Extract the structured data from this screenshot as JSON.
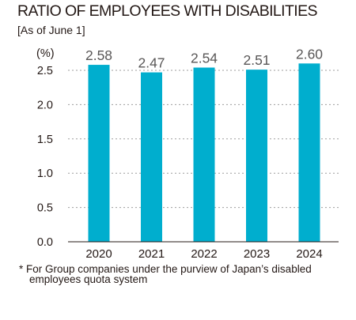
{
  "header": {
    "title": "RATIO OF EMPLOYEES WITH DISABILITIES",
    "subtitle": "[As of June 1]"
  },
  "footnote": {
    "line1": "* For Group companies under the purview of Japan’s disabled",
    "line2": "employees quota system"
  },
  "colors": {
    "bar": "#00AECE",
    "grid": "#9E9E9E",
    "axis": "#231815",
    "text": "#231815",
    "value_label": "#595757"
  },
  "chart_data": {
    "type": "bar",
    "title": "RATIO OF EMPLOYEES WITH DISABILITIES",
    "ylabel": "(%)",
    "xlabel": "",
    "categories": [
      "2020",
      "2021",
      "2022",
      "2023",
      "2024"
    ],
    "values": [
      2.58,
      2.47,
      2.54,
      2.51,
      2.6
    ],
    "value_labels": [
      "2.58",
      "2.47",
      "2.54",
      "2.51",
      "2.60"
    ],
    "ylim": [
      0,
      2.5
    ],
    "yticks": [
      "0.0",
      "0.5",
      "1.0",
      "1.5",
      "2.0",
      "2.5"
    ],
    "grid": true
  }
}
